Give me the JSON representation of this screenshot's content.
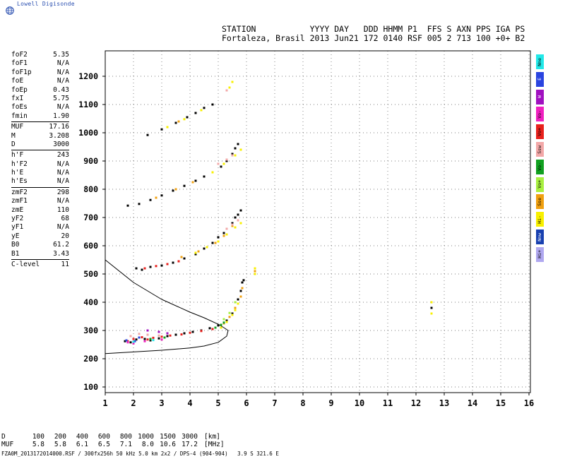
{
  "logo": {
    "text": "Lowell Digisonde",
    "icon": "globe-icon"
  },
  "header": {
    "line1": "STATION           YYYY DAY   DDD HHMM P1  FFS S AXN PPS IGA PS",
    "line2": "Fortaleza, Brasil 2013 Jun21 172 0140 RSF 005 2 713 100 +0+ B2"
  },
  "params": {
    "group1": [
      {
        "label": "foF2",
        "value": "5.35"
      },
      {
        "label": "foF1",
        "value": "N/A"
      },
      {
        "label": "foF1p",
        "value": "N/A"
      },
      {
        "label": "foE",
        "value": "N/A"
      },
      {
        "label": "foEp",
        "value": "0.43"
      },
      {
        "label": "fxI",
        "value": "5.75"
      },
      {
        "label": "foEs",
        "value": "N/A"
      },
      {
        "label": "fmin",
        "value": "1.90"
      }
    ],
    "group2": [
      {
        "label": "MUF",
        "value": "17.16"
      },
      {
        "label": "M",
        "value": "3.208"
      },
      {
        "label": "D",
        "value": "3000"
      }
    ],
    "group3": [
      {
        "label": "h'F",
        "value": "243"
      },
      {
        "label": "h'F2",
        "value": "N/A"
      },
      {
        "label": "h'E",
        "value": "N/A"
      },
      {
        "label": "h'Es",
        "value": "N/A"
      }
    ],
    "group4": [
      {
        "label": "zmF2",
        "value": "298"
      },
      {
        "label": "zmF1",
        "value": "N/A"
      },
      {
        "label": "zmE",
        "value": "110"
      },
      {
        "label": "yF2",
        "value": "68"
      },
      {
        "label": "yF1",
        "value": "N/A"
      },
      {
        "label": "yE",
        "value": "20"
      },
      {
        "label": "B0",
        "value": "61.2"
      },
      {
        "label": "B1",
        "value": "3.43"
      }
    ],
    "group5": [
      {
        "label": "C-level",
        "value": "11"
      }
    ]
  },
  "legend": [
    {
      "label": "Nne",
      "color": "#22e8e8",
      "text_color": "#000000"
    },
    {
      "label": "E",
      "color": "#2a44e0",
      "text_color": "#ffffff"
    },
    {
      "label": "W",
      "color": "#a010c0",
      "text_color": "#ffffff"
    },
    {
      "label": "Vo-",
      "color": "#f020c0",
      "text_color": "#000000"
    },
    {
      "label": "Vo+",
      "color": "#e8201c",
      "text_color": "#000000"
    },
    {
      "label": "Ssw",
      "color": "#f2a8a8",
      "text_color": "#000000"
    },
    {
      "label": "Vo-",
      "color": "#10a020",
      "text_color": "#000000"
    },
    {
      "label": "Vo+",
      "color": "#a8f040",
      "text_color": "#000000"
    },
    {
      "label": "Sse",
      "color": "#f0a010",
      "text_color": "#000000"
    },
    {
      "label": "Hi-",
      "color": "#f8f000",
      "text_color": "#000000"
    },
    {
      "label": "Nnw",
      "color": "#1840b0",
      "text_color": "#ffffff"
    },
    {
      "label": "Hi+",
      "color": "#b0a8f0",
      "text_color": "#000000"
    }
  ],
  "muf_table": {
    "d_label": "D",
    "d_values": [
      "100",
      "200",
      "400",
      "600",
      "800",
      "1000",
      "1500",
      "3000"
    ],
    "d_unit": "[km]",
    "muf_label": "MUF",
    "muf_values": [
      "5.8",
      "5.8",
      "6.1",
      "6.5",
      "7.1",
      "8.0",
      "10.6",
      "17.2"
    ],
    "muf_unit": "[MHz]"
  },
  "footer": "FZA0M_2013172014000.RSF / 300fx256h 50 kHz 5.0 km 2x2 / DPS-4 (904-904)   3.9 S 321.6 E",
  "chart_data": {
    "type": "scatter",
    "title": "",
    "xlabel": "",
    "ylabel": "",
    "xlim": [
      1,
      16
    ],
    "ylim": [
      60,
      1260
    ],
    "x_ticks": [
      "1",
      "2",
      "3",
      "4",
      "5",
      "6",
      "7",
      "8",
      "9",
      "10",
      "11",
      "12",
      "13",
      "14",
      "15",
      "16"
    ],
    "y_ticks": [
      "100",
      "200",
      "300",
      "400",
      "500",
      "600",
      "700",
      "800",
      "900",
      "1000",
      "1100",
      "1200"
    ],
    "grid": true,
    "series": [
      {
        "color": "#000000",
        "points": [
          [
            1.7,
            262
          ],
          [
            1.9,
            258
          ],
          [
            2.1,
            268
          ],
          [
            2.4,
            270
          ],
          [
            2.6,
            265
          ],
          [
            2.9,
            272
          ],
          [
            3.2,
            280
          ],
          [
            3.5,
            285
          ],
          [
            3.8,
            290
          ],
          [
            4.1,
            295
          ],
          [
            4.4,
            300
          ],
          [
            4.7,
            308
          ],
          [
            5.0,
            318
          ],
          [
            5.3,
            335
          ],
          [
            5.5,
            360
          ],
          [
            5.6,
            380
          ],
          [
            5.7,
            410
          ],
          [
            5.8,
            440
          ],
          [
            5.85,
            470
          ],
          [
            5.9,
            478
          ],
          [
            2.1,
            520
          ],
          [
            2.3,
            515
          ],
          [
            2.6,
            525
          ],
          [
            3.0,
            530
          ],
          [
            3.4,
            540
          ],
          [
            3.8,
            555
          ],
          [
            4.2,
            570
          ],
          [
            4.5,
            590
          ],
          [
            4.8,
            610
          ],
          [
            5.0,
            630
          ],
          [
            5.2,
            645
          ],
          [
            5.3,
            660
          ],
          [
            5.5,
            680
          ],
          [
            5.6,
            700
          ],
          [
            5.7,
            710
          ],
          [
            5.8,
            725
          ],
          [
            1.8,
            742
          ],
          [
            2.2,
            748
          ],
          [
            2.6,
            762
          ],
          [
            3.0,
            778
          ],
          [
            3.4,
            795
          ],
          [
            3.8,
            812
          ],
          [
            4.2,
            830
          ],
          [
            4.5,
            845
          ],
          [
            4.8,
            860
          ],
          [
            5.1,
            880
          ],
          [
            5.3,
            900
          ],
          [
            5.5,
            925
          ],
          [
            5.6,
            945
          ],
          [
            5.7,
            960
          ],
          [
            2.5,
            992
          ],
          [
            3.0,
            1012
          ],
          [
            3.5,
            1035
          ],
          [
            3.9,
            1055
          ],
          [
            4.2,
            1070
          ],
          [
            4.5,
            1088
          ],
          [
            4.8,
            1100
          ],
          [
            12.55,
            380
          ]
        ]
      },
      {
        "color": "#e8201c",
        "points": [
          [
            1.8,
            262
          ],
          [
            2.0,
            270
          ],
          [
            2.3,
            276
          ],
          [
            2.5,
            268
          ],
          [
            2.7,
            274
          ],
          [
            3.0,
            278
          ],
          [
            3.3,
            282
          ],
          [
            3.7,
            286
          ],
          [
            4.0,
            292
          ],
          [
            4.4,
            298
          ],
          [
            4.8,
            305
          ],
          [
            2.4,
            520
          ],
          [
            2.8,
            528
          ],
          [
            3.2,
            535
          ],
          [
            3.6,
            545
          ]
        ]
      },
      {
        "color": "#f8f000",
        "points": [
          [
            5.1,
            310
          ],
          [
            5.3,
            330
          ],
          [
            5.5,
            355
          ],
          [
            5.6,
            372
          ],
          [
            5.7,
            395
          ],
          [
            6.3,
            500
          ],
          [
            6.3,
            520
          ],
          [
            4.2,
            575
          ],
          [
            4.6,
            595
          ],
          [
            5.0,
            615
          ],
          [
            5.3,
            640
          ],
          [
            5.6,
            665
          ],
          [
            5.8,
            680
          ],
          [
            4.8,
            860
          ],
          [
            5.2,
            890
          ],
          [
            5.6,
            920
          ],
          [
            5.8,
            940
          ],
          [
            3.2,
            1020
          ],
          [
            3.8,
            1048
          ],
          [
            4.4,
            1080
          ],
          [
            5.4,
            1160
          ],
          [
            5.5,
            1180
          ],
          [
            12.55,
            360
          ],
          [
            12.55,
            400
          ]
        ]
      },
      {
        "color": "#f0a010",
        "points": [
          [
            5.2,
            325
          ],
          [
            5.4,
            348
          ],
          [
            5.6,
            380
          ],
          [
            5.8,
            420
          ],
          [
            5.85,
            450
          ],
          [
            3.7,
            560
          ],
          [
            4.3,
            580
          ],
          [
            4.9,
            610
          ],
          [
            5.2,
            635
          ],
          [
            5.5,
            670
          ],
          [
            6.3,
            510
          ],
          [
            2.8,
            770
          ],
          [
            3.5,
            800
          ],
          [
            4.1,
            825
          ],
          [
            3.6,
            1040
          ]
        ]
      },
      {
        "color": "#f2a8a8",
        "points": [
          [
            1.9,
            280
          ],
          [
            2.2,
            288
          ],
          [
            2.5,
            285
          ],
          [
            2.9,
            282
          ],
          [
            5.3,
            660
          ],
          [
            5.5,
            675
          ],
          [
            5.7,
            690
          ],
          [
            5.3,
            905
          ],
          [
            5.5,
            920
          ],
          [
            5.0,
            890
          ],
          [
            5.3,
            1150
          ]
        ]
      },
      {
        "color": "#10a020",
        "points": [
          [
            4.9,
            310
          ],
          [
            5.1,
            320
          ],
          [
            5.2,
            328
          ],
          [
            2.6,
            270
          ],
          [
            3.1,
            275
          ]
        ]
      },
      {
        "color": "#a8f040",
        "points": [
          [
            5.2,
            340
          ],
          [
            5.4,
            362
          ],
          [
            5.6,
            400
          ]
        ]
      },
      {
        "color": "#f020c0",
        "points": [
          [
            1.8,
            258
          ],
          [
            2.0,
            254
          ],
          [
            2.4,
            262
          ],
          [
            3.0,
            268
          ]
        ]
      },
      {
        "color": "#2a44e0",
        "points": [
          [
            1.75,
            265
          ],
          [
            2.05,
            262
          ],
          [
            2.2,
            275
          ]
        ]
      },
      {
        "color": "#a010c0",
        "points": [
          [
            2.5,
            300
          ],
          [
            2.9,
            295
          ],
          [
            3.2,
            290
          ]
        ]
      },
      {
        "color": "#22e8e8",
        "points": [
          [
            2.0,
            260
          ],
          [
            2.7,
            266
          ]
        ]
      }
    ],
    "profile_curve": [
      [
        1,
        550
      ],
      [
        2,
        470
      ],
      [
        3,
        410
      ],
      [
        4,
        365
      ],
      [
        4.5,
        345
      ],
      [
        5,
        322
      ],
      [
        5.2,
        310
      ],
      [
        5.35,
        300
      ],
      [
        5.3,
        280
      ],
      [
        5,
        258
      ],
      [
        4.5,
        245
      ],
      [
        4,
        238
      ],
      [
        3,
        230
      ],
      [
        2,
        224
      ],
      [
        1,
        218
      ]
    ]
  }
}
